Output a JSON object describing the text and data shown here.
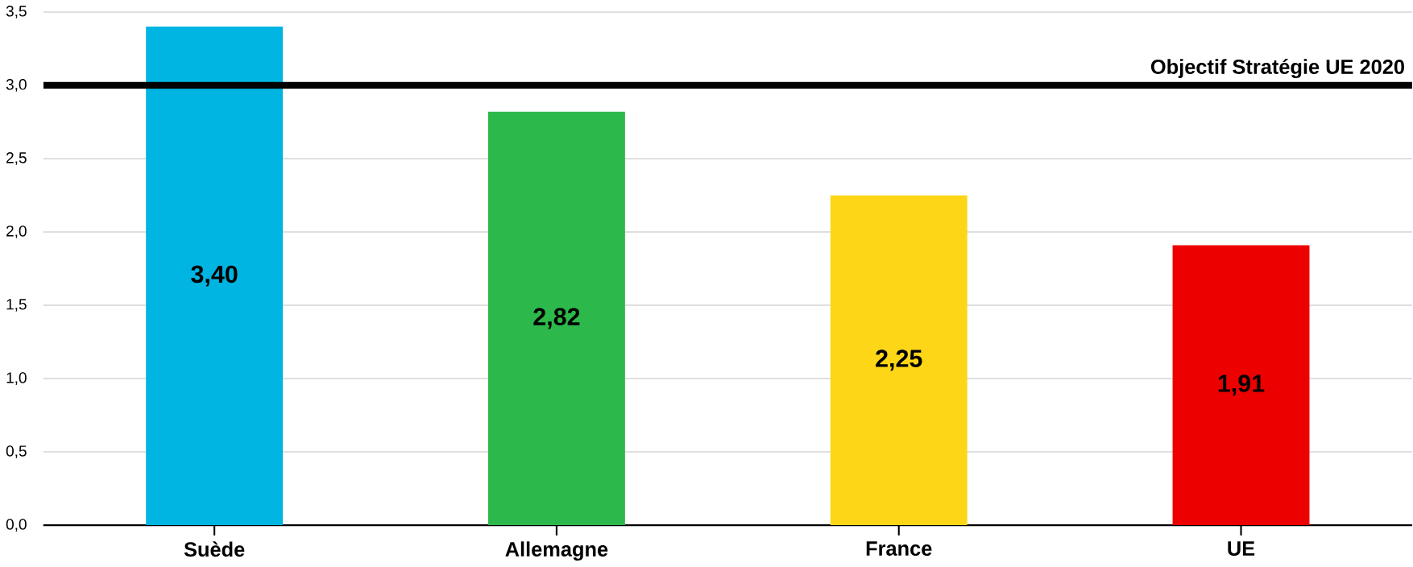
{
  "chart_data": {
    "type": "bar",
    "categories": [
      "Suède",
      "Allemagne",
      "France",
      "UE"
    ],
    "values": [
      3.4,
      2.82,
      2.25,
      1.91
    ],
    "value_labels": [
      "3,40",
      "2,82",
      "2,25",
      "1,91"
    ],
    "colors": [
      "#00b5e2",
      "#2db84b",
      "#fcd617",
      "#ec0000"
    ],
    "ylim": [
      0,
      3.5
    ],
    "yticks": [
      {
        "value": 0,
        "label": "0,0"
      },
      {
        "value": 0.5,
        "label": "0,5"
      },
      {
        "value": 1,
        "label": "1,0"
      },
      {
        "value": 1.5,
        "label": "1,5"
      },
      {
        "value": 2,
        "label": "2,0"
      },
      {
        "value": 2.5,
        "label": "2,5"
      },
      {
        "value": 3,
        "label": "3,0"
      },
      {
        "value": 3.5,
        "label": "3,5"
      }
    ],
    "grid": "y",
    "ref_lines": [
      {
        "axis": "y",
        "value": 3.0,
        "label": "Objectif Stratégie UE 2020",
        "color": "#000000"
      }
    ]
  }
}
